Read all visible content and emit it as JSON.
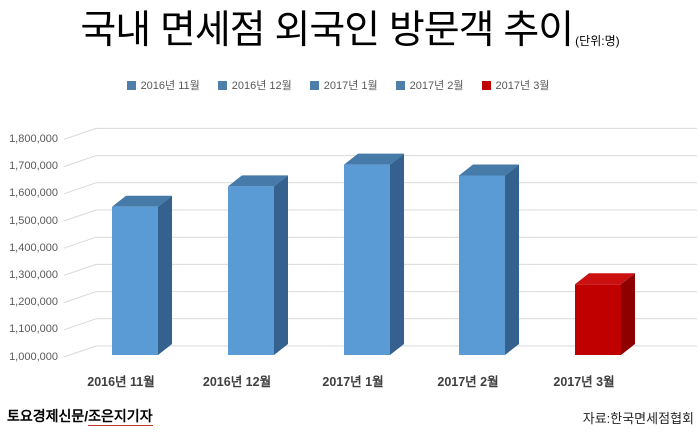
{
  "title": {
    "text": "국내 면세점 외국인 방문객 추이",
    "unit": "(단위:명)"
  },
  "legend": {
    "items": [
      {
        "label": "2016년 11월",
        "color": "#4e7fab"
      },
      {
        "label": "2016년 12월",
        "color": "#4e7fab"
      },
      {
        "label": "2017년 1월",
        "color": "#4e7fab"
      },
      {
        "label": "2017년 2월",
        "color": "#4e7fab"
      },
      {
        "label": "2017년 3월",
        "color": "#c00000"
      }
    ]
  },
  "footer": {
    "credit_prefix": "토요경제신문/",
    "credit_name": "조은지기자",
    "source": "자료:한국면세점협회"
  },
  "colors": {
    "grid": "#d9d9d9",
    "axis_text": "#595959",
    "category_text": "#3f3f3f",
    "underline_accent": "#c0392b",
    "blue": {
      "front": "#5b9bd5",
      "top": "#457aa9",
      "side": "#35618e"
    },
    "red": {
      "front": "#c00000",
      "top": "#ca1010",
      "side": "#8e0000"
    }
  },
  "chart_data": {
    "type": "bar",
    "style": "3d",
    "title": "국내 면세점 외국인 방문객 추이",
    "unit_label": "(단위:명)",
    "categories": [
      "2016년 11월",
      "2016년 12월",
      "2017년 1월",
      "2017년 2월",
      "2017년 3월"
    ],
    "values": [
      1545000,
      1620000,
      1700000,
      1660000,
      1260000
    ],
    "bar_color_keys": [
      "blue",
      "blue",
      "blue",
      "blue",
      "red"
    ],
    "xlabel": "",
    "ylabel": "",
    "ylim": [
      1000000,
      1800000
    ],
    "ytick_step": 100000,
    "grid": true,
    "legend_position": "top",
    "legend_entries": [
      "2016년 11월",
      "2016년 12월",
      "2017년 1월",
      "2017년 2월",
      "2017년 3월"
    ],
    "source_note": "자료:한국면세점협회"
  }
}
